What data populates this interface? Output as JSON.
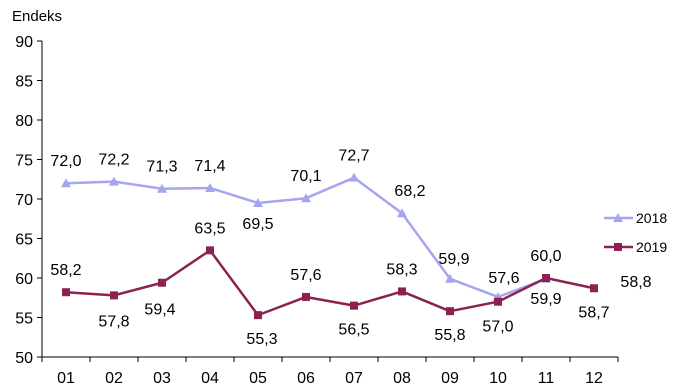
{
  "chart_data": {
    "type": "line",
    "ylabel": "Endeks",
    "ylim": [
      50,
      90
    ],
    "yticks": [
      50,
      55,
      60,
      65,
      70,
      75,
      80,
      85,
      90
    ],
    "categories": [
      "01",
      "02",
      "03",
      "04",
      "05",
      "06",
      "07",
      "08",
      "09",
      "10",
      "11",
      "12"
    ],
    "legend_position": "right",
    "grid": false,
    "series": [
      {
        "name": "2018",
        "color": "#a6a6f0",
        "marker": "triangle",
        "values": [
          72.0,
          72.2,
          71.3,
          71.4,
          69.5,
          70.1,
          72.7,
          68.2,
          59.9,
          57.6,
          59.9,
          null
        ],
        "labels": [
          "72,0",
          "72,2",
          "71,3",
          "71,4",
          "69,5",
          "70,1",
          "72,7",
          "68,2",
          "59,9",
          "57,6",
          "59,9",
          null
        ]
      },
      {
        "name": "2019",
        "color": "#8b2252",
        "marker": "square",
        "values": [
          58.2,
          57.8,
          59.4,
          63.5,
          55.3,
          57.6,
          56.5,
          58.3,
          55.8,
          57.0,
          60.0,
          58.7
        ],
        "labels": [
          "58,2",
          "57,8",
          "59,4",
          "63,5",
          "55,3",
          "57,6",
          "56,5",
          "58,3",
          "55,8",
          "57,0",
          "60,0",
          "58,7"
        ]
      }
    ],
    "annotations": [
      "58,8"
    ]
  }
}
